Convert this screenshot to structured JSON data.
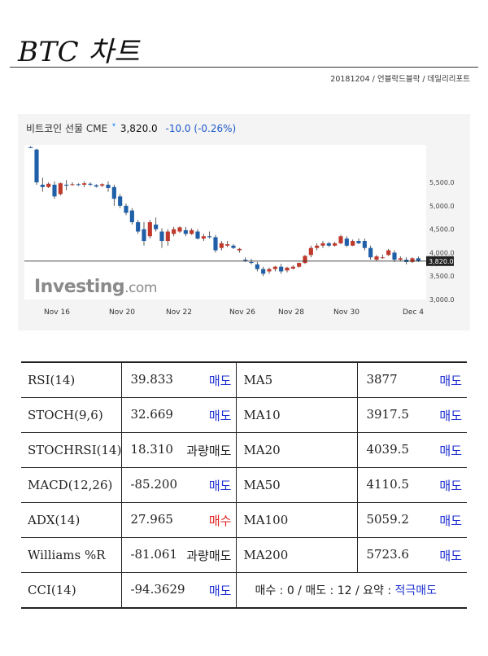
{
  "page": {
    "title": "BTC 차트",
    "byline": "20181204 / 언블락드블락 / 데일리리포트"
  },
  "header": {
    "instrument": "비트코인 선물 CME",
    "price": "3,820.0",
    "change": "-10.0",
    "change_pct": "(-0.26%)",
    "current_tag": "3,820.0"
  },
  "brand": {
    "name": "Investing",
    "domain": ".com"
  },
  "colors": {
    "up": "#c0392b",
    "down": "#1f5fa8",
    "sell": "#1e2fd0",
    "buy": "#e02020"
  },
  "chart_data": {
    "type": "candlestick",
    "x_ticks": [
      "Nov 16",
      "Nov 20",
      "Nov 22",
      "Nov 26",
      "Nov 28",
      "Nov 30",
      "Dec 4"
    ],
    "y_ticks": [
      5500,
      5000,
      4500,
      4000,
      3500,
      3000
    ],
    "y_tick_labels": [
      "5,500.0",
      "5,000.0",
      "4,500.0",
      "4,000.0",
      "3,500.0",
      "3,000.0"
    ],
    "ylim": [
      3000,
      6300
    ],
    "current_price": 3820,
    "grid": false,
    "ohlc": [
      [
        6250,
        6270,
        6230,
        6240
      ],
      [
        6200,
        6220,
        5450,
        5500
      ],
      [
        5450,
        5600,
        5300,
        5400
      ],
      [
        5400,
        5500,
        5380,
        5470
      ],
      [
        5450,
        5520,
        5150,
        5200
      ],
      [
        5250,
        5500,
        5220,
        5480
      ],
      [
        5450,
        5550,
        5330,
        5430
      ],
      [
        5450,
        5500,
        5430,
        5460
      ],
      [
        5460,
        5480,
        5420,
        5450
      ],
      [
        5450,
        5520,
        5400,
        5480
      ],
      [
        5470,
        5500,
        5420,
        5450
      ],
      [
        5440,
        5460,
        5390,
        5410
      ],
      [
        5430,
        5480,
        5400,
        5460
      ],
      [
        5450,
        5520,
        5300,
        5380
      ],
      [
        5400,
        5450,
        5000,
        5150
      ],
      [
        5200,
        5250,
        4950,
        5000
      ],
      [
        5000,
        5050,
        4800,
        4850
      ],
      [
        4900,
        4950,
        4600,
        4650
      ],
      [
        4650,
        4700,
        4400,
        4450
      ],
      [
        4500,
        4650,
        4150,
        4250
      ],
      [
        4350,
        4700,
        4300,
        4650
      ],
      [
        4600,
        4750,
        4450,
        4500
      ],
      [
        4450,
        4520,
        4100,
        4250
      ],
      [
        4250,
        4500,
        4150,
        4450
      ],
      [
        4400,
        4550,
        4350,
        4500
      ],
      [
        4450,
        4560,
        4420,
        4540
      ],
      [
        4480,
        4550,
        4350,
        4400
      ],
      [
        4400,
        4520,
        4380,
        4480
      ],
      [
        4450,
        4500,
        4280,
        4300
      ],
      [
        4300,
        4400,
        4250,
        4350
      ],
      [
        4350,
        4450,
        4300,
        4330
      ],
      [
        4330,
        4380,
        4000,
        4050
      ],
      [
        4100,
        4250,
        4050,
        4200
      ],
      [
        4150,
        4250,
        4120,
        4180
      ],
      [
        4150,
        4180,
        4080,
        4100
      ],
      [
        4050,
        4100,
        4000,
        4080
      ],
      [
        3850,
        3900,
        3800,
        3830
      ],
      [
        3800,
        3870,
        3750,
        3780
      ],
      [
        3750,
        3800,
        3600,
        3650
      ],
      [
        3650,
        3700,
        3500,
        3550
      ],
      [
        3600,
        3680,
        3550,
        3650
      ],
      [
        3650,
        3720,
        3600,
        3700
      ],
      [
        3700,
        3760,
        3550,
        3600
      ],
      [
        3620,
        3700,
        3580,
        3680
      ],
      [
        3660,
        3730,
        3640,
        3700
      ],
      [
        3700,
        3790,
        3680,
        3780
      ],
      [
        3780,
        3950,
        3760,
        3930
      ],
      [
        3950,
        4150,
        3900,
        4100
      ],
      [
        4100,
        4200,
        4050,
        4150
      ],
      [
        4150,
        4250,
        4100,
        4200
      ],
      [
        4200,
        4230,
        4120,
        4150
      ],
      [
        4150,
        4230,
        4130,
        4200
      ],
      [
        4200,
        4380,
        4180,
        4350
      ],
      [
        4300,
        4350,
        4120,
        4150
      ],
      [
        4150,
        4280,
        4140,
        4250
      ],
      [
        4250,
        4300,
        4180,
        4200
      ],
      [
        4250,
        4300,
        4050,
        4100
      ],
      [
        4100,
        4150,
        3850,
        3900
      ],
      [
        3850,
        3950,
        3820,
        3920
      ],
      [
        3900,
        3960,
        3870,
        3900
      ],
      [
        3950,
        4080,
        3930,
        4050
      ],
      [
        4000,
        4050,
        3800,
        3850
      ],
      [
        3850,
        3920,
        3820,
        3880
      ],
      [
        3850,
        3900,
        3750,
        3800
      ],
      [
        3800,
        3900,
        3780,
        3880
      ],
      [
        3880,
        3920,
        3800,
        3820
      ]
    ]
  },
  "indicators": [
    {
      "name": "RSI(14)",
      "value": "39.833",
      "signal": "매도",
      "kind": "sell",
      "ma_name": "MA5",
      "ma_value": "3877",
      "ma_signal": "매도",
      "ma_kind": "sell"
    },
    {
      "name": "STOCH(9,6)",
      "value": "32.669",
      "signal": "매도",
      "kind": "sell",
      "ma_name": "MA10",
      "ma_value": "3917.5",
      "ma_signal": "매도",
      "ma_kind": "sell"
    },
    {
      "name": "STOCHRSI(14)",
      "value": "18.310",
      "signal": "과량매도",
      "kind": "over",
      "ma_name": "MA20",
      "ma_value": "4039.5",
      "ma_signal": "매도",
      "ma_kind": "sell"
    },
    {
      "name": "MACD(12,26)",
      "value": "-85.200",
      "signal": "매도",
      "kind": "sell",
      "ma_name": "MA50",
      "ma_value": "4110.5",
      "ma_signal": "매도",
      "ma_kind": "sell"
    },
    {
      "name": "ADX(14)",
      "value": "27.965",
      "signal": "매수",
      "kind": "buy",
      "ma_name": "MA100",
      "ma_value": "5059.2",
      "ma_signal": "매도",
      "ma_kind": "sell"
    },
    {
      "name": "Williams %R",
      "value": "-81.061",
      "signal": "과량매도",
      "kind": "over",
      "ma_name": "MA200",
      "ma_value": "5723.6",
      "ma_signal": "매도",
      "ma_kind": "sell"
    },
    {
      "name": "CCI(14)",
      "value": "-94.3629",
      "signal": "매도",
      "kind": "sell"
    }
  ],
  "summary": {
    "text": "매수 : 0 / 매도 : 12 / 요약 : ",
    "verdict": "적극매도"
  }
}
